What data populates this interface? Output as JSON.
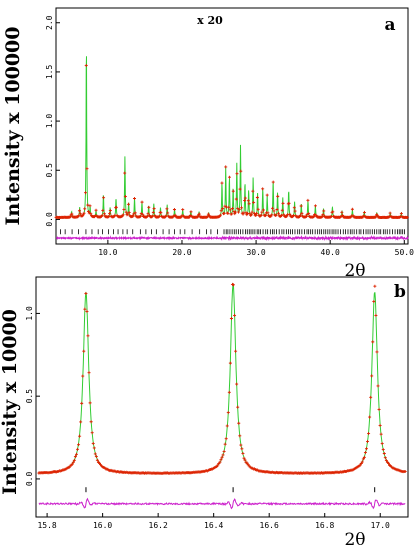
{
  "chart_data": [
    {
      "type": "line",
      "panel_label": "a",
      "annotation": "x 20",
      "ylabel": "Intensity x 100000",
      "xlabel": "2θ",
      "xlim": [
        3,
        50.5
      ],
      "ylim": [
        -0.25,
        2.15
      ],
      "x_ticks": [
        "10.0",
        "20.0",
        "30.0",
        "40.0",
        "50.0"
      ],
      "y_ticks": [
        "0.0",
        "0.5",
        "1.0",
        "1.5",
        "2.0"
      ],
      "background": 0.02,
      "difference_offset": -0.19,
      "scale_change_at": 25.2,
      "peaks": [
        {
          "x": 5.1,
          "y": 0.06
        },
        {
          "x": 6.2,
          "y": 0.1
        },
        {
          "x": 7.1,
          "y": 1.76
        },
        {
          "x": 7.6,
          "y": 0.1
        },
        {
          "x": 8.4,
          "y": 0.07
        },
        {
          "x": 9.4,
          "y": 0.24
        },
        {
          "x": 10.3,
          "y": 0.1
        },
        {
          "x": 11.1,
          "y": 0.2
        },
        {
          "x": 12.3,
          "y": 0.62
        },
        {
          "x": 12.8,
          "y": 0.15
        },
        {
          "x": 13.6,
          "y": 0.2
        },
        {
          "x": 14.6,
          "y": 0.16
        },
        {
          "x": 15.5,
          "y": 0.12
        },
        {
          "x": 16.2,
          "y": 0.14
        },
        {
          "x": 17.1,
          "y": 0.1
        },
        {
          "x": 18.0,
          "y": 0.13
        },
        {
          "x": 19.0,
          "y": 0.09
        },
        {
          "x": 20.1,
          "y": 0.08
        },
        {
          "x": 21.2,
          "y": 0.07
        },
        {
          "x": 22.3,
          "y": 0.06
        },
        {
          "x": 23.6,
          "y": 0.05
        },
        {
          "x": 25.4,
          "y": 0.35
        },
        {
          "x": 25.9,
          "y": 0.5
        },
        {
          "x": 26.4,
          "y": 0.4
        },
        {
          "x": 26.9,
          "y": 0.3
        },
        {
          "x": 27.4,
          "y": 0.55
        },
        {
          "x": 27.9,
          "y": 0.73
        },
        {
          "x": 28.5,
          "y": 0.35
        },
        {
          "x": 29.0,
          "y": 0.28
        },
        {
          "x": 29.6,
          "y": 0.4
        },
        {
          "x": 30.2,
          "y": 0.25
        },
        {
          "x": 30.9,
          "y": 0.3
        },
        {
          "x": 31.5,
          "y": 0.22
        },
        {
          "x": 32.3,
          "y": 0.38
        },
        {
          "x": 32.9,
          "y": 0.26
        },
        {
          "x": 33.6,
          "y": 0.2
        },
        {
          "x": 34.4,
          "y": 0.28
        },
        {
          "x": 35.2,
          "y": 0.16
        },
        {
          "x": 36.1,
          "y": 0.14
        },
        {
          "x": 37.0,
          "y": 0.17
        },
        {
          "x": 38.0,
          "y": 0.12
        },
        {
          "x": 39.1,
          "y": 0.09
        },
        {
          "x": 40.3,
          "y": 0.11
        },
        {
          "x": 41.6,
          "y": 0.07
        },
        {
          "x": 43.0,
          "y": 0.08
        },
        {
          "x": 44.6,
          "y": 0.06
        },
        {
          "x": 46.3,
          "y": 0.05
        },
        {
          "x": 48.1,
          "y": 0.05
        },
        {
          "x": 49.6,
          "y": 0.04
        }
      ]
    },
    {
      "type": "line",
      "panel_label": "b",
      "ylabel": "Intensity x 10000",
      "xlabel": "2θ",
      "xlim": [
        15.76,
        17.1
      ],
      "ylim": [
        -0.23,
        1.22
      ],
      "x_ticks": [
        "15.8",
        "16.0",
        "16.2",
        "16.4",
        "16.6",
        "16.8",
        "17.0"
      ],
      "y_ticks": [
        "0.0",
        "0.5",
        "1.0"
      ],
      "background": 0.03,
      "difference_offset": -0.15,
      "peaks": [
        {
          "x": 15.94,
          "y": 1.1
        },
        {
          "x": 16.47,
          "y": 1.15
        },
        {
          "x": 16.98,
          "y": 1.1
        }
      ]
    }
  ],
  "colors": {
    "observed": "#dd2200",
    "calculated": "#33cc33",
    "difference": "#cc22cc",
    "reflections": "#000000",
    "axes": "#000000"
  }
}
